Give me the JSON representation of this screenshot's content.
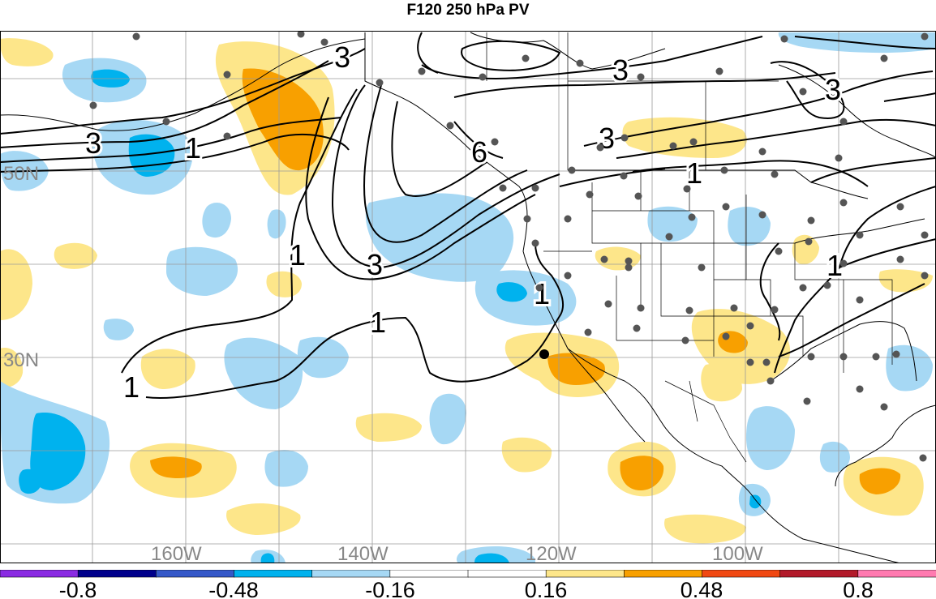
{
  "title": "F120 250 hPa PV",
  "lat_labels": [
    "50N",
    "30N"
  ],
  "lon_labels": [
    "160W",
    "140W",
    "120W",
    "100W"
  ],
  "contour_labels": [
    "3",
    "3",
    "3",
    "3",
    "3",
    "3",
    "1",
    "1",
    "1",
    "1",
    "1",
    "1",
    "6",
    "1"
  ],
  "colorbar": {
    "colors": [
      "#8a2be2",
      "#00008b",
      "#3558c8",
      "#00b2ee",
      "#a6d8f4",
      "#ffffff",
      "#ffffff",
      "#fde68a",
      "#f8a000",
      "#f04812",
      "#b21a2a",
      "#ff7ab0"
    ],
    "tick_labels": [
      "-0.8",
      "-0.48",
      "-0.16",
      "0.16",
      "0.48",
      "0.8"
    ]
  },
  "colors": {
    "negative_light": "#a6d8f4",
    "negative_mid": "#00b2ee",
    "positive_light": "#fde68a",
    "positive_mid": "#f8a000",
    "grid": "#9a9a9a",
    "coast": "#000000"
  }
}
